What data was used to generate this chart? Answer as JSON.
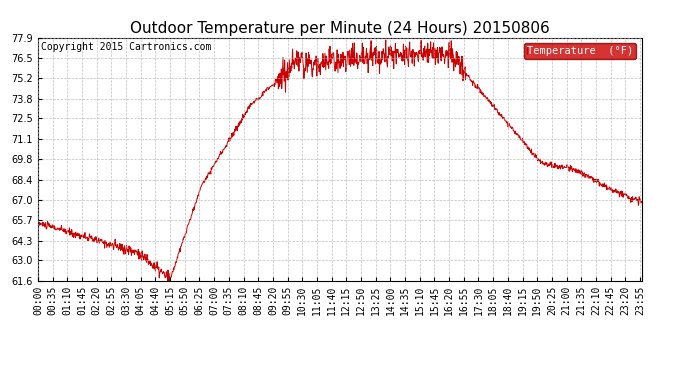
{
  "title": "Outdoor Temperature per Minute (24 Hours) 20150806",
  "copyright_text": "Copyright 2015 Cartronics.com",
  "legend_label": "Temperature  (°F)",
  "background_color": "#ffffff",
  "plot_bg_color": "#ffffff",
  "line_color": "#cc0000",
  "legend_bg_color": "#cc0000",
  "legend_text_color": "#ffffff",
  "yticks": [
    61.6,
    63.0,
    64.3,
    65.7,
    67.0,
    68.4,
    69.8,
    71.1,
    72.5,
    73.8,
    75.2,
    76.5,
    77.9
  ],
  "ymin": 61.6,
  "ymax": 77.9,
  "grid_color": "#b0b0b0",
  "title_fontsize": 11,
  "tick_fontsize": 7,
  "copyright_fontsize": 7
}
